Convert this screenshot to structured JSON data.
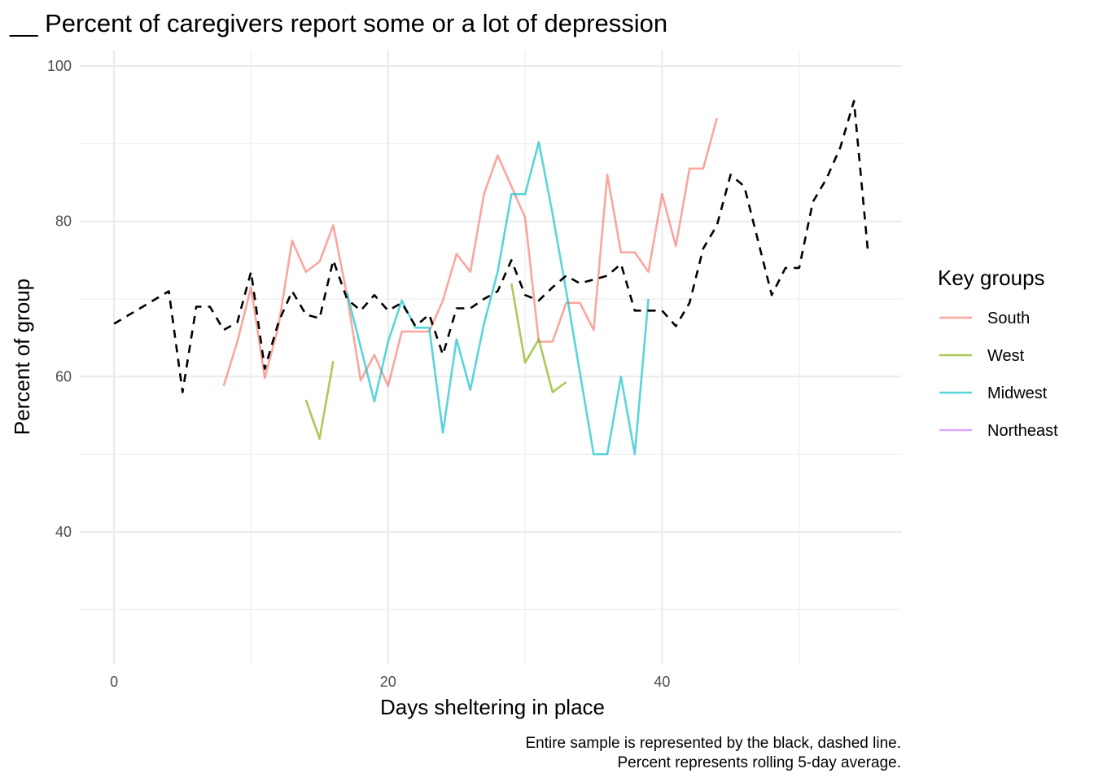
{
  "chart_data": {
    "type": "line",
    "title": "__ Percent of caregivers report some or a lot of depression",
    "xlabel": "Days sheltering in place",
    "ylabel": "Percent of group",
    "caption": [
      "Entire sample is represented by the black, dashed line.",
      "Percent represents rolling 5-day average."
    ],
    "xlim": [
      -2.5,
      57.5
    ],
    "ylim": [
      23,
      102
    ],
    "x_ticks": [
      0,
      20,
      40
    ],
    "y_ticks": [
      40,
      60,
      80,
      100
    ],
    "grid": true,
    "legend": {
      "title": "Key groups",
      "position": "right",
      "entries": [
        "South",
        "West",
        "Midwest",
        "Northeast"
      ]
    },
    "overall": {
      "color": "#000000",
      "dashed": true,
      "points": [
        [
          0,
          66.8
        ],
        [
          4,
          71
        ],
        [
          5,
          58
        ],
        [
          6,
          69
        ],
        [
          7,
          69
        ],
        [
          8,
          66
        ],
        [
          9,
          67
        ],
        [
          10,
          73.5
        ],
        [
          11,
          61
        ],
        [
          12,
          67
        ],
        [
          13,
          71
        ],
        [
          14,
          68
        ],
        [
          15,
          67.5
        ],
        [
          16,
          75
        ],
        [
          17,
          70
        ],
        [
          18,
          68.5
        ],
        [
          19,
          70.5
        ],
        [
          20,
          68.5
        ],
        [
          21,
          69.5
        ],
        [
          22,
          66.5
        ],
        [
          23,
          68
        ],
        [
          24,
          62.8
        ],
        [
          25,
          68.8
        ],
        [
          26,
          68.8
        ],
        [
          27,
          70
        ],
        [
          28,
          71
        ],
        [
          29,
          75
        ],
        [
          30,
          70.5
        ],
        [
          31,
          69.8
        ],
        [
          32,
          71.5
        ],
        [
          33,
          73
        ],
        [
          34,
          72
        ],
        [
          35,
          72.5
        ],
        [
          36,
          73
        ],
        [
          37,
          74.5
        ],
        [
          38,
          68.5
        ],
        [
          39,
          68.5
        ],
        [
          40,
          68.5
        ],
        [
          41,
          66.5
        ],
        [
          42,
          69.5
        ],
        [
          43,
          76.5
        ],
        [
          44,
          79.5
        ],
        [
          45,
          86
        ],
        [
          46,
          84.5
        ],
        [
          48,
          70.5
        ],
        [
          49,
          74
        ],
        [
          50,
          74
        ],
        [
          51,
          82.5
        ],
        [
          52,
          85.5
        ],
        [
          53,
          89.5
        ],
        [
          54,
          95.5
        ],
        [
          55,
          76.5
        ]
      ]
    },
    "series": [
      {
        "name": "South",
        "color": "#F8766D",
        "points": [
          [
            8,
            58.8
          ],
          [
            9,
            64.5
          ],
          [
            10,
            71.5
          ],
          [
            11,
            59.8
          ],
          [
            12,
            66.5
          ],
          [
            13,
            77.5
          ],
          [
            14,
            73.5
          ],
          [
            15,
            74.8
          ],
          [
            16,
            79.5
          ],
          [
            17,
            70.5
          ],
          [
            18,
            59.5
          ],
          [
            19,
            62.8
          ],
          [
            20,
            58.8
          ],
          [
            21,
            65.8
          ],
          [
            22,
            65.8
          ],
          [
            23,
            65.8
          ],
          [
            24,
            69.8
          ],
          [
            25,
            75.8
          ],
          [
            26,
            73.5
          ],
          [
            27,
            83.5
          ],
          [
            28,
            88.5
          ],
          [
            29,
            84.5
          ],
          [
            30,
            80.5
          ],
          [
            31,
            64.5
          ],
          [
            32,
            64.5
          ],
          [
            33,
            69.5
          ],
          [
            34,
            69.5
          ],
          [
            35,
            66
          ],
          [
            36,
            86
          ],
          [
            37,
            76
          ],
          [
            38,
            76
          ],
          [
            39,
            73.5
          ],
          [
            40,
            83.5
          ],
          [
            41,
            76.8
          ],
          [
            42,
            86.8
          ],
          [
            43,
            86.8
          ],
          [
            44,
            93.3
          ]
        ]
      },
      {
        "name": "West",
        "color": "#7CAE00",
        "segments": [
          [
            [
              14,
              57
            ],
            [
              15,
              52
            ],
            [
              16,
              62
            ]
          ],
          [
            [
              29,
              72
            ],
            [
              30,
              61.8
            ],
            [
              31,
              64.8
            ],
            [
              32,
              58
            ],
            [
              33,
              59.3
            ]
          ]
        ]
      },
      {
        "name": "Midwest",
        "color": "#00BFC4",
        "points": [
          [
            17,
            70.8
          ],
          [
            19,
            56.8
          ],
          [
            20,
            64.5
          ],
          [
            21,
            69.8
          ],
          [
            22,
            66.3
          ],
          [
            23,
            66.3
          ],
          [
            24,
            52.8
          ],
          [
            25,
            64.8
          ],
          [
            26,
            58.3
          ],
          [
            27,
            66.8
          ],
          [
            28,
            73.5
          ],
          [
            29,
            83.5
          ],
          [
            30,
            83.5
          ],
          [
            31,
            90.2
          ],
          [
            32,
            81
          ],
          [
            33,
            71
          ],
          [
            35,
            50
          ],
          [
            36,
            50
          ],
          [
            37,
            60
          ],
          [
            38,
            50
          ],
          [
            39,
            70
          ]
        ]
      },
      {
        "name": "Northeast",
        "color": "#C77CFF",
        "points": []
      }
    ]
  }
}
